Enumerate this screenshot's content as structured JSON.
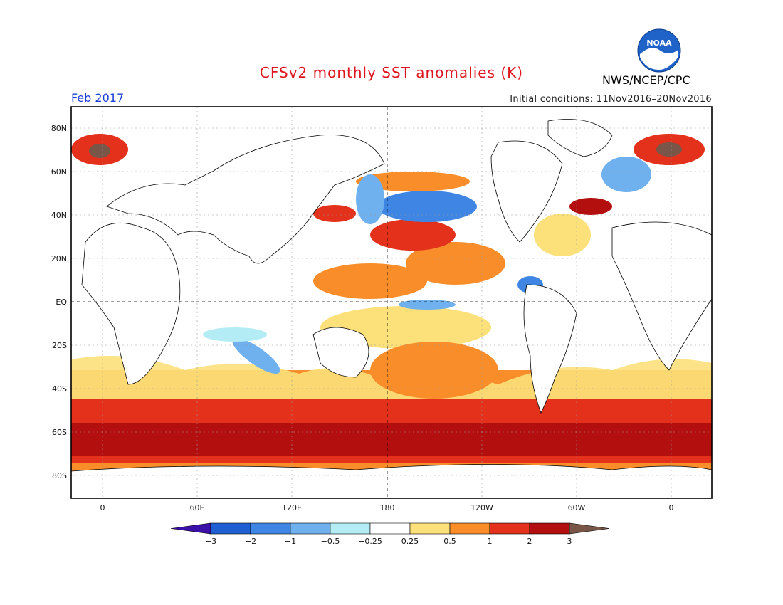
{
  "header": {
    "title": "CFSv2 monthly SST anomalies (K)",
    "period": "Feb 2017",
    "initial_conditions": "Initial conditions: 11Nov2016–20Nov2016",
    "agency": "NWS/NCEP/CPC",
    "logo_text": "NOAA"
  },
  "map": {
    "lat_labels": [
      "80N",
      "60N",
      "40N",
      "20N",
      "EQ",
      "20S",
      "40S",
      "60S",
      "80S"
    ],
    "lon_labels": [
      "0",
      "60E",
      "120E",
      "180",
      "120W",
      "60W",
      "0"
    ]
  },
  "colorbar": {
    "labels": [
      "−3",
      "−2",
      "−1",
      "−0.5",
      "−0.25",
      "0.25",
      "0.5",
      "1",
      "2",
      "3"
    ],
    "colors": [
      "#3a10a8",
      "#1f5fd1",
      "#3f86e4",
      "#6fb0ef",
      "#b3ecf5",
      "#ffffff",
      "#fce07a",
      "#f98d2a",
      "#e3311c",
      "#b30f0f",
      "#7a5649"
    ]
  }
}
